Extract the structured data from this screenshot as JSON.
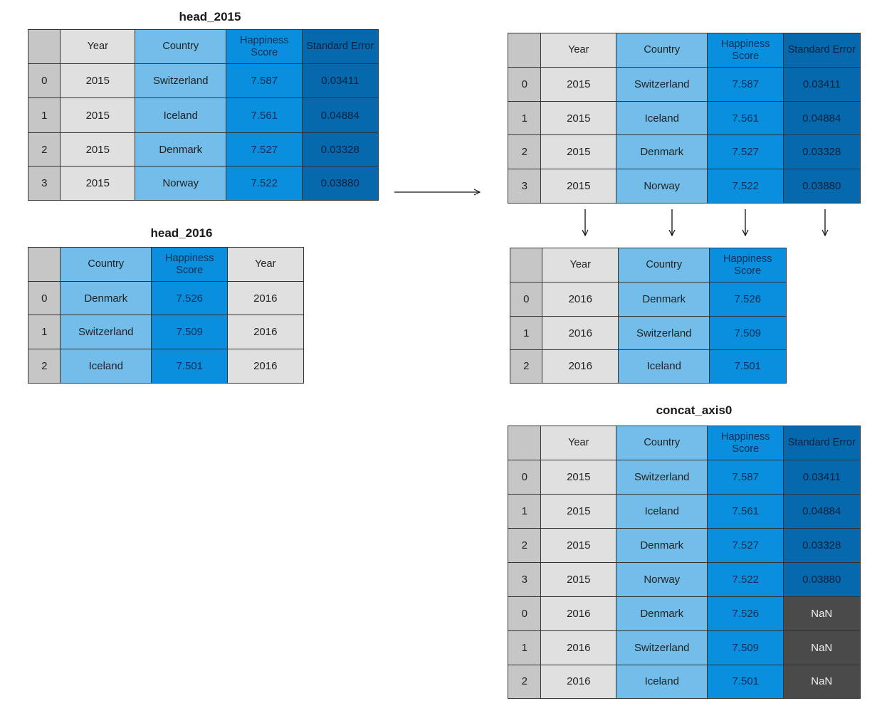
{
  "columns": {
    "year": "Year",
    "country": "Country",
    "score": "Happiness Score",
    "error": "Standard Error"
  },
  "tables": {
    "head_2015": {
      "title": "head_2015",
      "rows": [
        {
          "index": "0",
          "year": "2015",
          "country": "Switzerland",
          "score": "7.587",
          "error": "0.03411"
        },
        {
          "index": "1",
          "year": "2015",
          "country": "Iceland",
          "score": "7.561",
          "error": "0.04884"
        },
        {
          "index": "2",
          "year": "2015",
          "country": "Denmark",
          "score": "7.527",
          "error": "0.03328"
        },
        {
          "index": "3",
          "year": "2015",
          "country": "Norway",
          "score": "7.522",
          "error": "0.03880"
        }
      ]
    },
    "head_2016": {
      "title": "head_2016",
      "rows": [
        {
          "index": "0",
          "country": "Denmark",
          "score": "7.526",
          "year": "2016"
        },
        {
          "index": "1",
          "country": "Switzerland",
          "score": "7.509",
          "year": "2016"
        },
        {
          "index": "2",
          "country": "Iceland",
          "score": "7.501",
          "year": "2016"
        }
      ]
    },
    "aligned_2015": {
      "rows": [
        {
          "index": "0",
          "year": "2015",
          "country": "Switzerland",
          "score": "7.587",
          "error": "0.03411"
        },
        {
          "index": "1",
          "year": "2015",
          "country": "Iceland",
          "score": "7.561",
          "error": "0.04884"
        },
        {
          "index": "2",
          "year": "2015",
          "country": "Denmark",
          "score": "7.527",
          "error": "0.03328"
        },
        {
          "index": "3",
          "year": "2015",
          "country": "Norway",
          "score": "7.522",
          "error": "0.03880"
        }
      ]
    },
    "aligned_2016": {
      "rows": [
        {
          "index": "0",
          "year": "2016",
          "country": "Denmark",
          "score": "7.526"
        },
        {
          "index": "1",
          "year": "2016",
          "country": "Switzerland",
          "score": "7.509"
        },
        {
          "index": "2",
          "year": "2016",
          "country": "Iceland",
          "score": "7.501"
        }
      ]
    },
    "concat_axis0": {
      "title": "concat_axis0",
      "rows": [
        {
          "index": "0",
          "year": "2015",
          "country": "Switzerland",
          "score": "7.587",
          "error": "0.03411"
        },
        {
          "index": "1",
          "year": "2015",
          "country": "Iceland",
          "score": "7.561",
          "error": "0.04884"
        },
        {
          "index": "2",
          "year": "2015",
          "country": "Denmark",
          "score": "7.527",
          "error": "0.03328"
        },
        {
          "index": "3",
          "year": "2015",
          "country": "Norway",
          "score": "7.522",
          "error": "0.03880"
        },
        {
          "index": "0",
          "year": "2016",
          "country": "Denmark",
          "score": "7.526",
          "error": "NaN"
        },
        {
          "index": "1",
          "year": "2016",
          "country": "Switzerland",
          "score": "7.509",
          "error": "NaN"
        },
        {
          "index": "2",
          "year": "2016",
          "country": "Iceland",
          "score": "7.501",
          "error": "NaN"
        }
      ]
    }
  },
  "colors": {
    "index": "#c6c6c6",
    "year": "#e0e0e0",
    "country": "#72bde9",
    "score": "#0a8ede",
    "error": "#0668ad",
    "nan": "#4a4a4a"
  }
}
